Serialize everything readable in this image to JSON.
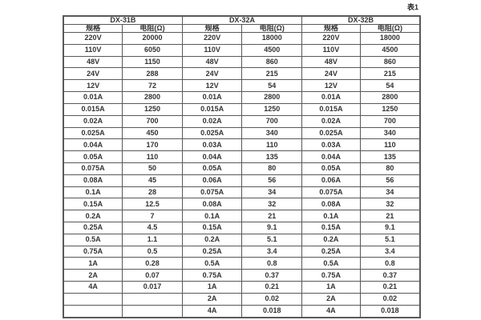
{
  "caption": "表1",
  "table": {
    "groups": [
      {
        "name": "DX-31B",
        "spec_header": "规格",
        "resistance_header": "电阻(Ω)"
      },
      {
        "name": "DX-32A",
        "spec_header": "规格",
        "resistance_header": "电阻(Ω)"
      },
      {
        "name": "DX-32B",
        "spec_header": "规格",
        "resistance_header": "电阻(Ω)"
      }
    ],
    "rows": [
      [
        "220V",
        "20000",
        "220V",
        "18000",
        "220V",
        "18000"
      ],
      [
        "110V",
        "6050",
        "110V",
        "4500",
        "110V",
        "4500"
      ],
      [
        "48V",
        "1150",
        "48V",
        "860",
        "48V",
        "860"
      ],
      [
        "24V",
        "288",
        "24V",
        "215",
        "24V",
        "215"
      ],
      [
        "12V",
        "72",
        "12V",
        "54",
        "12V",
        "54"
      ],
      [
        "0.01A",
        "2800",
        "0.01A",
        "2800",
        "0.01A",
        "2800"
      ],
      [
        "0.015A",
        "1250",
        "0.015A",
        "1250",
        "0.015A",
        "1250"
      ],
      [
        "0.02A",
        "700",
        "0.02A",
        "700",
        "0.02A",
        "700"
      ],
      [
        "0.025A",
        "450",
        "0.025A",
        "340",
        "0.025A",
        "340"
      ],
      [
        "0.04A",
        "170",
        "0.03A",
        "110",
        "0.03A",
        "110"
      ],
      [
        "0.05A",
        "110",
        "0.04A",
        "135",
        "0.04A",
        "135"
      ],
      [
        "0.075A",
        "50",
        "0.05A",
        "80",
        "0.05A",
        "80"
      ],
      [
        "0.08A",
        "45",
        "0.06A",
        "56",
        "0.06A",
        "56"
      ],
      [
        "0.1A",
        "28",
        "0.075A",
        "34",
        "0.075A",
        "34"
      ],
      [
        "0.15A",
        "12.5",
        "0.08A",
        "32",
        "0.08A",
        "32"
      ],
      [
        "0.2A",
        "7",
        "0.1A",
        "21",
        "0.1A",
        "21"
      ],
      [
        "0.25A",
        "4.5",
        "0.15A",
        "9.1",
        "0.15A",
        "9.1"
      ],
      [
        "0.5A",
        "1.1",
        "0.2A",
        "5.1",
        "0.2A",
        "5.1"
      ],
      [
        "0.75A",
        "0.5",
        "0.25A",
        "3.4",
        "0.25A",
        "3.4"
      ],
      [
        "1A",
        "0.28",
        "0.5A",
        "0.8",
        "0.5A",
        "0.8"
      ],
      [
        "2A",
        "0.07",
        "0.75A",
        "0.37",
        "0.75A",
        "0.37"
      ],
      [
        "4A",
        "0.017",
        "1A",
        "0.21",
        "1A",
        "0.21"
      ],
      [
        "",
        "",
        "2A",
        "0.02",
        "2A",
        "0.02"
      ],
      [
        "",
        "",
        "4A",
        "0.018",
        "4A",
        "0.018"
      ]
    ]
  },
  "colors": {
    "border": "#595959",
    "text": "#333333",
    "background": "#ffffff"
  }
}
